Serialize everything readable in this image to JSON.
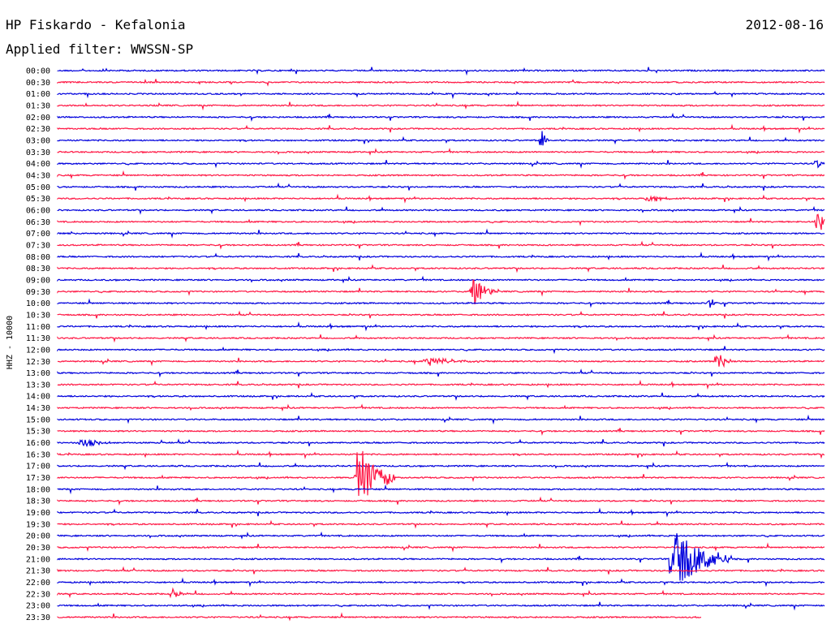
{
  "header": {
    "title": "HP Fiskardo - Kefalonia",
    "date": "2012-08-16",
    "filter_prefix": "Applied filter: ",
    "filter": "WWSSN-SP"
  },
  "colors": {
    "even": "#0000dd",
    "odd": "#ff1744"
  },
  "chart_data": {
    "type": "helicorder",
    "ylabel": "HHZ - 10000",
    "rows": [
      "00:00",
      "00:30",
      "01:00",
      "01:30",
      "02:00",
      "02:30",
      "03:00",
      "03:30",
      "04:00",
      "04:30",
      "05:00",
      "05:30",
      "06:00",
      "06:30",
      "07:00",
      "07:30",
      "08:00",
      "08:30",
      "09:00",
      "09:30",
      "10:00",
      "10:30",
      "11:00",
      "11:30",
      "12:00",
      "12:30",
      "13:00",
      "13:30",
      "14:00",
      "14:30",
      "15:00",
      "15:30",
      "16:00",
      "16:30",
      "17:00",
      "17:30",
      "18:00",
      "18:30",
      "19:00",
      "19:30",
      "20:00",
      "20:30",
      "21:00",
      "21:30",
      "22:00",
      "22:30",
      "23:00",
      "23:30"
    ],
    "row_colors": [
      "even",
      "odd"
    ],
    "events": [
      {
        "row": 6,
        "pos": 0.63,
        "amp": 1.2,
        "len": 0.01
      },
      {
        "row": 13,
        "pos": 0.99,
        "amp": 1.4,
        "len": 0.02
      },
      {
        "row": 19,
        "pos": 0.54,
        "amp": 1.6,
        "len": 0.03
      },
      {
        "row": 20,
        "pos": 0.85,
        "amp": 0.7,
        "len": 0.01
      },
      {
        "row": 25,
        "pos": 0.86,
        "amp": 1.0,
        "len": 0.02
      },
      {
        "row": 25,
        "pos": 0.48,
        "amp": 0.4,
        "len": 0.08
      },
      {
        "row": 32,
        "pos": 0.03,
        "amp": 0.5,
        "len": 0.04
      },
      {
        "row": 35,
        "pos": 0.39,
        "amp": 3.5,
        "len": 0.05
      },
      {
        "row": 42,
        "pos": 0.8,
        "amp": 3.0,
        "len": 0.08
      },
      {
        "row": 45,
        "pos": 0.15,
        "amp": 0.5,
        "len": 0.02
      },
      {
        "row": 8,
        "pos": 0.99,
        "amp": 0.6,
        "len": 0.01
      },
      {
        "row": 11,
        "pos": 0.77,
        "amp": 0.6,
        "len": 0.03
      }
    ],
    "end_fraction": 0.84
  }
}
